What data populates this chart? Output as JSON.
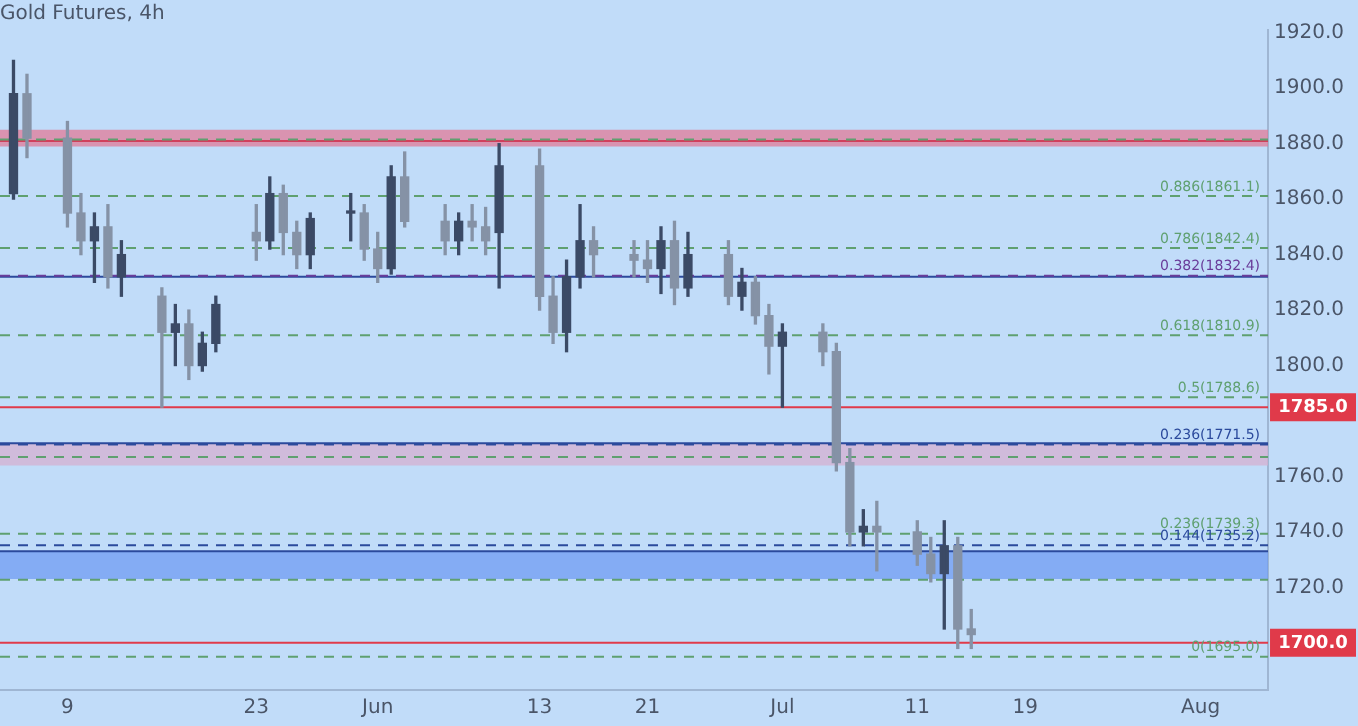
{
  "chart_data": {
    "type": "candlestick",
    "title": "Gold Futures, 4h",
    "x": [
      "--05-05",
      "--05-06",
      "--05-09",
      "--05-10",
      "--05-11",
      "--05-12",
      "--05-13",
      "--05-16",
      "--05-17",
      "--05-18",
      "--05-19",
      "--05-20",
      "--05-23",
      "--05-24",
      "--05-25",
      "--05-26",
      "--05-27",
      "--05-30",
      "--05-31",
      "--06-01",
      "--06-02",
      "--06-03",
      "--06-06",
      "--06-07",
      "--06-08",
      "--06-09",
      "--06-10",
      "--06-13",
      "--06-14",
      "--06-15",
      "--06-16",
      "--06-17",
      "--06-20",
      "--06-21",
      "--06-22",
      "--06-23",
      "--06-24",
      "--06-27",
      "--06-28",
      "--06-29",
      "--06-30",
      "--07-01",
      "--07-04",
      "--07-05",
      "--07-06",
      "--07-07",
      "--07-08",
      "--07-11",
      "--07-12",
      "--07-13",
      "--07-14",
      "--07-15"
    ],
    "ohlc": [
      [
        1862,
        1910,
        1860,
        1898
      ],
      [
        1898,
        1905,
        1875,
        1882
      ],
      [
        1882,
        1888,
        1850,
        1855
      ],
      [
        1855,
        1862,
        1840,
        1845
      ],
      [
        1845,
        1855,
        1830,
        1850
      ],
      [
        1850,
        1858,
        1828,
        1832
      ],
      [
        1832,
        1845,
        1825,
        1840
      ],
      [
        1825,
        1828,
        1785,
        1812
      ],
      [
        1812,
        1822,
        1800,
        1815
      ],
      [
        1815,
        1820,
        1795,
        1800
      ],
      [
        1800,
        1812,
        1798,
        1808
      ],
      [
        1808,
        1825,
        1805,
        1822
      ],
      [
        1848,
        1858,
        1838,
        1845
      ],
      [
        1845,
        1868,
        1842,
        1862
      ],
      [
        1862,
        1865,
        1840,
        1848
      ],
      [
        1848,
        1852,
        1835,
        1840
      ],
      [
        1840,
        1855,
        1835,
        1853
      ],
      [
        1855,
        1862,
        1845,
        1855
      ],
      [
        1855,
        1858,
        1838,
        1842
      ],
      [
        1842,
        1848,
        1830,
        1835
      ],
      [
        1835,
        1872,
        1833,
        1868
      ],
      [
        1868,
        1877,
        1850,
        1852
      ],
      [
        1852,
        1858,
        1840,
        1845
      ],
      [
        1845,
        1855,
        1840,
        1852
      ],
      [
        1852,
        1858,
        1845,
        1850
      ],
      [
        1850,
        1857,
        1840,
        1845
      ],
      [
        1848,
        1880,
        1828,
        1872
      ],
      [
        1872,
        1878,
        1820,
        1825
      ],
      [
        1825,
        1832,
        1808,
        1812
      ],
      [
        1812,
        1838,
        1805,
        1832
      ],
      [
        1832,
        1858,
        1828,
        1845
      ],
      [
        1845,
        1850,
        1832,
        1840
      ],
      [
        1840,
        1845,
        1832,
        1838
      ],
      [
        1838,
        1845,
        1830,
        1835
      ],
      [
        1835,
        1850,
        1826,
        1845
      ],
      [
        1845,
        1852,
        1822,
        1828
      ],
      [
        1828,
        1848,
        1825,
        1840
      ],
      [
        1840,
        1845,
        1822,
        1825
      ],
      [
        1825,
        1835,
        1820,
        1830
      ],
      [
        1830,
        1832,
        1815,
        1818
      ],
      [
        1818,
        1822,
        1797,
        1807
      ],
      [
        1807,
        1815,
        1785,
        1812
      ],
      [
        1812,
        1815,
        1800,
        1805
      ],
      [
        1805,
        1808,
        1762,
        1765
      ],
      [
        1765,
        1770,
        1735,
        1740
      ],
      [
        1740,
        1748,
        1735,
        1742
      ],
      [
        1742,
        1751,
        1726,
        1740
      ],
      [
        1740,
        1744,
        1728,
        1732
      ],
      [
        1732,
        1738,
        1722,
        1725
      ],
      [
        1725,
        1744,
        1705,
        1735
      ],
      [
        1735,
        1738,
        1698,
        1705
      ],
      [
        1705,
        1712,
        1698,
        1703
      ]
    ],
    "colors": [
      "#3b4a66",
      "#8592a6",
      "#8592a6",
      "#8592a6",
      "#3b4a66",
      "#8592a6",
      "#3b4a66",
      "#8592a6",
      "#3b4a66",
      "#8592a6",
      "#3b4a66",
      "#3b4a66",
      "#8592a6",
      "#3b4a66",
      "#8592a6",
      "#8592a6",
      "#3b4a66",
      "#3b4a66",
      "#8592a6",
      "#8592a6",
      "#3b4a66",
      "#8592a6",
      "#8592a6",
      "#3b4a66",
      "#8592a6",
      "#8592a6",
      "#3b4a66",
      "#8592a6",
      "#8592a6",
      "#3b4a66",
      "#3b4a66",
      "#8592a6",
      "#8592a6",
      "#8592a6",
      "#3b4a66",
      "#8592a6",
      "#3b4a66",
      "#8592a6",
      "#3b4a66",
      "#8592a6",
      "#8592a6",
      "#3b4a66",
      "#8592a6",
      "#8592a6",
      "#8592a6",
      "#3b4a66",
      "#8592a6",
      "#8592a6",
      "#8592a6",
      "#3b4a66",
      "#8592a6",
      "#8592a6"
    ],
    "xlim": [
      "--05-04",
      "--08-06"
    ],
    "xticks": [
      {
        "value": "--05-09",
        "label": "9"
      },
      {
        "value": "--05-23",
        "label": "23"
      },
      {
        "value": "--06-01",
        "label": "Jun"
      },
      {
        "value": "--06-13",
        "label": "13"
      },
      {
        "value": "--06-21",
        "label": "21"
      },
      {
        "value": "--07-01",
        "label": "Jul"
      },
      {
        "value": "--07-11",
        "label": "11"
      },
      {
        "value": "--07-19",
        "label": "19"
      },
      {
        "value": "--08-01",
        "label": "Aug"
      }
    ],
    "ylim": [
      1683,
      1921
    ],
    "yticks": [
      {
        "value": 1700,
        "label": null
      },
      {
        "value": 1720,
        "label": "1720.0"
      },
      {
        "value": 1740,
        "label": "1740.0"
      },
      {
        "value": 1760,
        "label": "1760.0"
      },
      {
        "value": 1800,
        "label": "1800.0"
      },
      {
        "value": 1820,
        "label": "1820.0"
      },
      {
        "value": 1840,
        "label": "1840.0"
      },
      {
        "value": 1860,
        "label": "1860.0"
      },
      {
        "value": 1880,
        "label": "1880.0"
      },
      {
        "value": 1900,
        "label": "1900.0"
      },
      {
        "value": 1920,
        "label": "1920.0"
      }
    ],
    "bands": [
      {
        "axis": "y",
        "from": 1879,
        "to": 1885,
        "color": "#e07b97"
      },
      {
        "axis": "y",
        "from": 1764,
        "to": 1772,
        "color": "#d4b0d0"
      },
      {
        "axis": "y",
        "from": 1723,
        "to": 1733,
        "color": "#6f9cf2"
      }
    ],
    "ref_lines": [
      {
        "axis": "y",
        "value": 1881,
        "color": "#d0405c",
        "line_style": "solid"
      },
      {
        "axis": "y",
        "value": 1832,
        "color": "#2b4a9c",
        "line_style": "solid"
      },
      {
        "axis": "y",
        "value": 1772,
        "color": "#2b4a9c",
        "line_style": "solid"
      },
      {
        "axis": "y",
        "value": 1733,
        "color": "#2b4a9c",
        "line_style": "solid"
      },
      {
        "axis": "y",
        "value": 1785,
        "label": "1785.0",
        "color": "#e03a4a",
        "line_style": "solid"
      },
      {
        "axis": "y",
        "value": 1700,
        "label": "1700.0",
        "color": "#e03a4a",
        "line_style": "solid"
      },
      {
        "axis": "y",
        "value": 1881.5,
        "color": "#5fa070",
        "line_style": "dashed"
      },
      {
        "axis": "y",
        "value": 1861.1,
        "label": "0.886(1861.1)",
        "color": "#5fa070",
        "line_style": "dashed"
      },
      {
        "axis": "y",
        "value": 1842.4,
        "label": "0.786(1842.4)",
        "color": "#5fa070",
        "line_style": "dashed"
      },
      {
        "axis": "y",
        "value": 1832.4,
        "label": "0.382(1832.4)",
        "color": "#6a3d9a",
        "line_style": "dashed"
      },
      {
        "axis": "y",
        "value": 1810.9,
        "label": "0.618(1810.9)",
        "color": "#5fa070",
        "line_style": "dashed"
      },
      {
        "axis": "y",
        "value": 1788.6,
        "label": "0.5(1788.6)",
        "color": "#5fa070",
        "line_style": "dashed"
      },
      {
        "axis": "y",
        "value": 1771.5,
        "label": "0.236(1771.5)",
        "color": "#2b4a9c",
        "line_style": "dashed"
      },
      {
        "axis": "y",
        "value": 1767,
        "color": "#5fa070",
        "line_style": "dashed"
      },
      {
        "axis": "y",
        "value": 1739.3,
        "label": "0.236(1739.3)",
        "color": "#5fa070",
        "line_style": "dashed"
      },
      {
        "axis": "y",
        "value": 1735.2,
        "label": "0.144(1735.2)",
        "color": "#2b4a9c",
        "line_style": "dashed"
      },
      {
        "axis": "y",
        "value": 1722.8,
        "color": "#5fa070",
        "line_style": "dashed"
      },
      {
        "axis": "y",
        "value": 1695,
        "label": "0(1695.0)",
        "color": "#5fa070",
        "line_style": "dashed"
      }
    ],
    "grid": false,
    "legend": false
  }
}
